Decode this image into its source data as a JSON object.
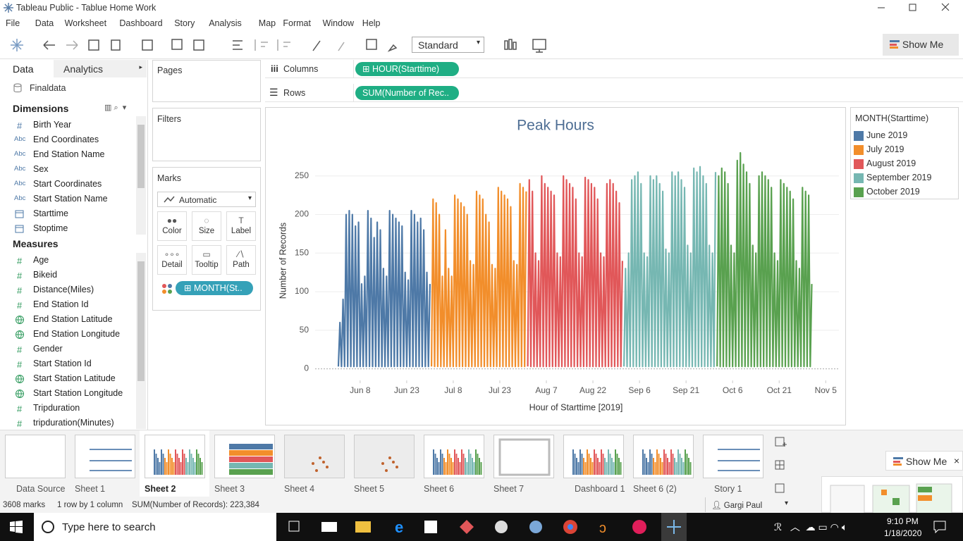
{
  "window": {
    "title": "Tableau Public - Tablue Home Work"
  },
  "menu": [
    "File",
    "Data",
    "Worksheet",
    "Dashboard",
    "Story",
    "Analysis",
    "Map",
    "Format",
    "Window",
    "Help"
  ],
  "toolbar": {
    "view_size": "Standard",
    "show_me": "Show Me"
  },
  "data_pane": {
    "tabs": [
      "Data",
      "Analytics"
    ],
    "source": "Finaldata",
    "dimensions_title": "Dimensions",
    "dimensions": [
      {
        "icon": "#",
        "name": "Birth Year"
      },
      {
        "icon": "Abc",
        "name": "End Coordinates"
      },
      {
        "icon": "Abc",
        "name": "End Station Name"
      },
      {
        "icon": "Abc",
        "name": "Sex"
      },
      {
        "icon": "Abc",
        "name": "Start Coordinates"
      },
      {
        "icon": "Abc",
        "name": "Start Station Name"
      },
      {
        "icon_shape": "calendar",
        "name": "Starttime"
      },
      {
        "icon_shape": "calendar",
        "name": "Stoptime"
      }
    ],
    "measures_title": "Measures",
    "measures": [
      {
        "icon": "#",
        "name": "Age"
      },
      {
        "icon": "#",
        "name": "Bikeid"
      },
      {
        "icon": "#",
        "name": "Distance(Miles)"
      },
      {
        "icon": "#",
        "name": "End Station Id"
      },
      {
        "icon_shape": "globe",
        "name": "End Station Latitude"
      },
      {
        "icon_shape": "globe",
        "name": "End Station Longitude"
      },
      {
        "icon": "#",
        "name": "Gender"
      },
      {
        "icon": "#",
        "name": "Start Station Id"
      },
      {
        "icon_shape": "globe",
        "name": "Start Station Latitude"
      },
      {
        "icon_shape": "globe",
        "name": "Start Station Longitude"
      },
      {
        "icon": "#",
        "name": "Tripduration"
      },
      {
        "icon": "#",
        "name": "tripduration(Minutes)"
      }
    ]
  },
  "cards": {
    "pages": "Pages",
    "filters": "Filters",
    "marks": "Marks",
    "mark_type": "Automatic",
    "buttons": [
      "Color",
      "Size",
      "Label",
      "Detail",
      "Tooltip",
      "Path"
    ],
    "pill": "MONTH(St.."
  },
  "shelves": {
    "columns": "Columns",
    "columns_pill": "HOUR(Starttime)",
    "rows": "Rows",
    "rows_pill": "SUM(Number of Rec.."
  },
  "chart_data": {
    "type": "line",
    "title": "Peak Hours",
    "x_label": "Hour of Starttime [2019]",
    "y_label": "Number of Records",
    "legend_title": "MONTH(Starttime)",
    "grid": true,
    "xlim": [
      -180,
      3870
    ],
    "ylim": [
      -15,
      290
    ],
    "xticks": [
      {
        "value": 168,
        "label": "Jun 8"
      },
      {
        "value": 528,
        "label": "Jun 23"
      },
      {
        "value": 888,
        "label": "Jul 8"
      },
      {
        "value": 1248,
        "label": "Jul 23"
      },
      {
        "value": 1608,
        "label": "Aug 7"
      },
      {
        "value": 1968,
        "label": "Aug 22"
      },
      {
        "value": 2328,
        "label": "Sep 6"
      },
      {
        "value": 2688,
        "label": "Sep 21"
      },
      {
        "value": 3048,
        "label": "Oct 6"
      },
      {
        "value": 3408,
        "label": "Oct 21"
      },
      {
        "value": 3768,
        "label": "Nov 5"
      }
    ],
    "yticks": [
      0,
      50,
      100,
      150,
      200,
      250
    ],
    "series": [
      {
        "name": "June 2019",
        "color": "#4e79a7",
        "x": [
          0,
          12,
          24,
          36,
          48,
          60,
          72,
          84,
          96,
          108,
          120,
          132,
          144,
          156,
          168,
          180,
          192,
          204,
          216,
          228,
          240,
          252,
          264,
          276,
          288,
          300,
          312,
          324,
          336,
          348,
          360,
          372,
          384,
          396,
          408,
          420,
          432,
          444,
          456,
          468,
          480,
          492,
          504,
          516,
          528,
          540,
          552,
          564,
          576,
          588,
          600,
          612,
          624,
          636,
          648,
          660,
          672,
          684,
          696,
          708
        ],
        "values": [
          3,
          60,
          3,
          90,
          3,
          200,
          3,
          205,
          3,
          200,
          3,
          185,
          3,
          190,
          3,
          110,
          3,
          120,
          3,
          205,
          3,
          195,
          3,
          170,
          3,
          190,
          3,
          180,
          3,
          130,
          3,
          120,
          3,
          205,
          3,
          200,
          3,
          195,
          3,
          190,
          3,
          185,
          3,
          125,
          3,
          115,
          3,
          205,
          3,
          200,
          3,
          190,
          3,
          195,
          3,
          180,
          3,
          125,
          3,
          110
        ]
      },
      {
        "name": "July 2019",
        "color": "#f28e2b",
        "x": [
          720,
          732,
          744,
          756,
          768,
          780,
          792,
          804,
          816,
          828,
          840,
          852,
          864,
          876,
          888,
          900,
          912,
          924,
          936,
          948,
          960,
          972,
          984,
          996,
          1008,
          1020,
          1032,
          1044,
          1056,
          1068,
          1080,
          1092,
          1104,
          1116,
          1128,
          1140,
          1152,
          1164,
          1176,
          1188,
          1200,
          1212,
          1224,
          1236,
          1248,
          1260,
          1272,
          1284,
          1296,
          1308,
          1320,
          1332,
          1344,
          1356,
          1368,
          1380,
          1392,
          1404,
          1416,
          1428,
          1440,
          1452
        ],
        "values": [
          3,
          220,
          3,
          215,
          3,
          200,
          3,
          120,
          3,
          180,
          3,
          130,
          3,
          120,
          3,
          225,
          3,
          220,
          3,
          215,
          3,
          210,
          3,
          200,
          3,
          140,
          3,
          135,
          3,
          230,
          3,
          225,
          3,
          220,
          3,
          200,
          3,
          190,
          3,
          135,
          3,
          130,
          3,
          235,
          3,
          230,
          3,
          225,
          3,
          220,
          3,
          210,
          3,
          140,
          3,
          135,
          3,
          240,
          3,
          235,
          3,
          230
        ]
      },
      {
        "name": "August 2019",
        "color": "#e15759",
        "x": [
          1464,
          1476,
          1488,
          1500,
          1512,
          1524,
          1536,
          1548,
          1560,
          1572,
          1584,
          1596,
          1608,
          1620,
          1632,
          1644,
          1656,
          1668,
          1680,
          1692,
          1704,
          1716,
          1728,
          1740,
          1752,
          1764,
          1776,
          1788,
          1800,
          1812,
          1824,
          1836,
          1848,
          1860,
          1872,
          1884,
          1896,
          1908,
          1920,
          1932,
          1944,
          1956,
          1968,
          1980,
          1992,
          2004,
          2016,
          2028,
          2040,
          2052,
          2064,
          2076,
          2088,
          2100,
          2112,
          2124,
          2136,
          2148,
          2160,
          2172,
          2184,
          2196
        ],
        "values": [
          3,
          245,
          3,
          230,
          3,
          150,
          3,
          140,
          3,
          250,
          3,
          240,
          3,
          235,
          3,
          230,
          3,
          225,
          3,
          150,
          3,
          145,
          3,
          250,
          3,
          245,
          3,
          240,
          3,
          235,
          3,
          220,
          3,
          150,
          3,
          145,
          3,
          248,
          3,
          245,
          3,
          240,
          3,
          235,
          3,
          220,
          3,
          150,
          3,
          145,
          3,
          240,
          3,
          245,
          3,
          240,
          3,
          230,
          3,
          215,
          3,
          140
        ]
      },
      {
        "name": "September 2019",
        "color": "#76b7b2",
        "x": [
          2208,
          2220,
          2232,
          2244,
          2256,
          2268,
          2280,
          2292,
          2304,
          2316,
          2328,
          2340,
          2352,
          2364,
          2376,
          2388,
          2400,
          2412,
          2424,
          2436,
          2448,
          2460,
          2472,
          2484,
          2496,
          2508,
          2520,
          2532,
          2544,
          2556,
          2568,
          2580,
          2592,
          2604,
          2616,
          2628,
          2640,
          2652,
          2664,
          2676,
          2688,
          2700,
          2712,
          2724,
          2736,
          2748,
          2760,
          2772,
          2784,
          2796,
          2808,
          2820,
          2832,
          2844,
          2856,
          2868,
          2880,
          2892,
          2904,
          2916
        ],
        "values": [
          3,
          130,
          3,
          150,
          3,
          245,
          3,
          250,
          3,
          255,
          3,
          240,
          3,
          150,
          3,
          145,
          3,
          250,
          3,
          245,
          3,
          250,
          3,
          240,
          3,
          230,
          3,
          155,
          3,
          150,
          3,
          255,
          3,
          250,
          3,
          255,
          3,
          245,
          3,
          235,
          3,
          160,
          3,
          150,
          3,
          260,
          3,
          255,
          3,
          262,
          3,
          250,
          3,
          240,
          3,
          160,
          3,
          150,
          3,
          255
        ]
      },
      {
        "name": "October 2019",
        "color": "#59a14f",
        "x": [
          2928,
          2940,
          2952,
          2964,
          2976,
          2988,
          3000,
          3012,
          3024,
          3036,
          3048,
          3060,
          3072,
          3084,
          3096,
          3108,
          3120,
          3132,
          3144,
          3156,
          3168,
          3180,
          3192,
          3204,
          3216,
          3228,
          3240,
          3252,
          3264,
          3276,
          3288,
          3300,
          3312,
          3324,
          3336,
          3348,
          3360,
          3372,
          3384,
          3396,
          3408,
          3420,
          3432,
          3444,
          3456,
          3468,
          3480,
          3492,
          3504,
          3516,
          3528,
          3540,
          3552,
          3564,
          3576,
          3588,
          3600,
          3612,
          3624,
          3636,
          3648,
          3660
        ],
        "values": [
          3,
          250,
          3,
          260,
          3,
          255,
          3,
          240,
          3,
          160,
          3,
          150,
          3,
          270,
          3,
          280,
          3,
          265,
          3,
          255,
          3,
          240,
          3,
          160,
          3,
          150,
          3,
          250,
          3,
          255,
          3,
          250,
          3,
          245,
          3,
          235,
          3,
          150,
          3,
          140,
          3,
          245,
          3,
          240,
          3,
          235,
          3,
          230,
          3,
          220,
          3,
          140,
          3,
          130,
          3,
          235,
          3,
          230,
          3,
          225,
          3,
          110
        ]
      }
    ]
  },
  "sheet_tabs": [
    "Data Source",
    "Sheet 1",
    "Sheet 2",
    "Sheet 3",
    "Sheet 4",
    "Sheet 5",
    "Sheet 6",
    "Sheet 7",
    "Dashboard 1",
    "Sheet 6 (2)",
    "Story 1"
  ],
  "status": {
    "marks": "3608 marks",
    "layout": "1 row by 1 column",
    "sum": "SUM(Number of Records): 223,384",
    "user": "Gargi Paul"
  },
  "show_me_panel": {
    "title": "Show Me"
  },
  "taskbar": {
    "search": "Type here to search",
    "time": "9:10 PM",
    "date": "1/18/2020"
  }
}
